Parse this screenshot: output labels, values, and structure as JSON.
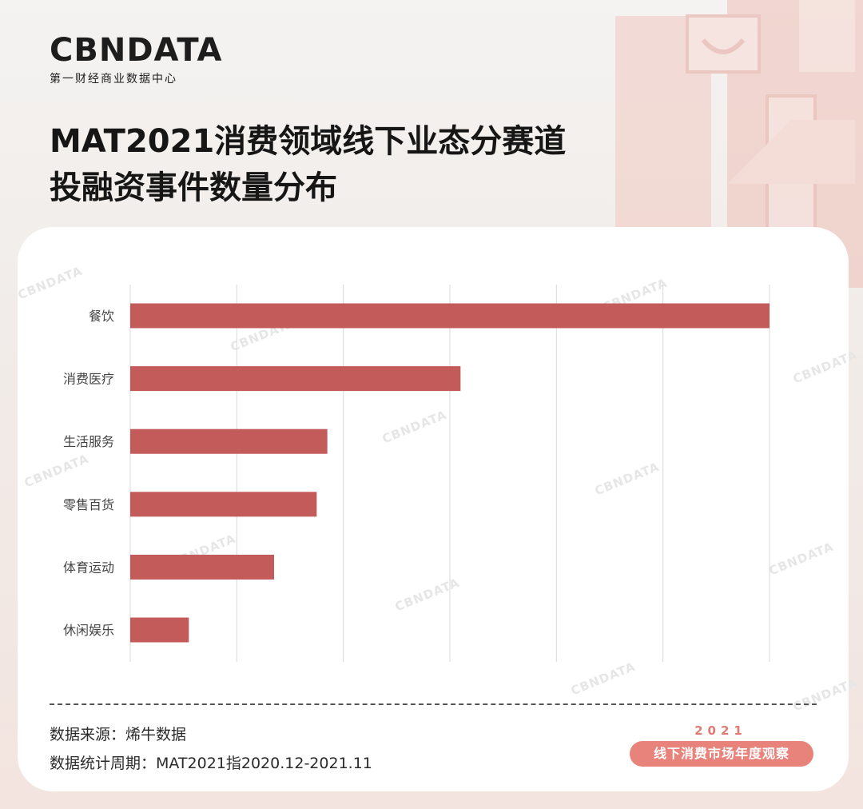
{
  "header": {
    "logo_text": "CBNDATA",
    "logo_subtitle": "第一财经商业数据中心",
    "title_line1": "MAT2021消费领域线下业态分赛道",
    "title_line2": "投融资事件数量分布"
  },
  "chart_data": {
    "type": "bar",
    "orientation": "horizontal",
    "categories": [
      "餐饮",
      "消费医疗",
      "生活服务",
      "零售百货",
      "体育运动",
      "休闲娱乐"
    ],
    "values": [
      60,
      31,
      18.5,
      17.5,
      13.5,
      5.5
    ],
    "xlim": [
      0,
      60
    ],
    "grid": true,
    "bar_color": "#c45b5b"
  },
  "footer": {
    "source": "数据来源：烯牛数据",
    "period": "数据统计周期：MAT2021指2020.12-2021.11",
    "badge_year": "2021",
    "badge_text": "线下消费市场年度观察"
  },
  "colors": {
    "bar": "#c45b5b",
    "grid": "#d9d9d9",
    "badge": "#e8837b"
  }
}
